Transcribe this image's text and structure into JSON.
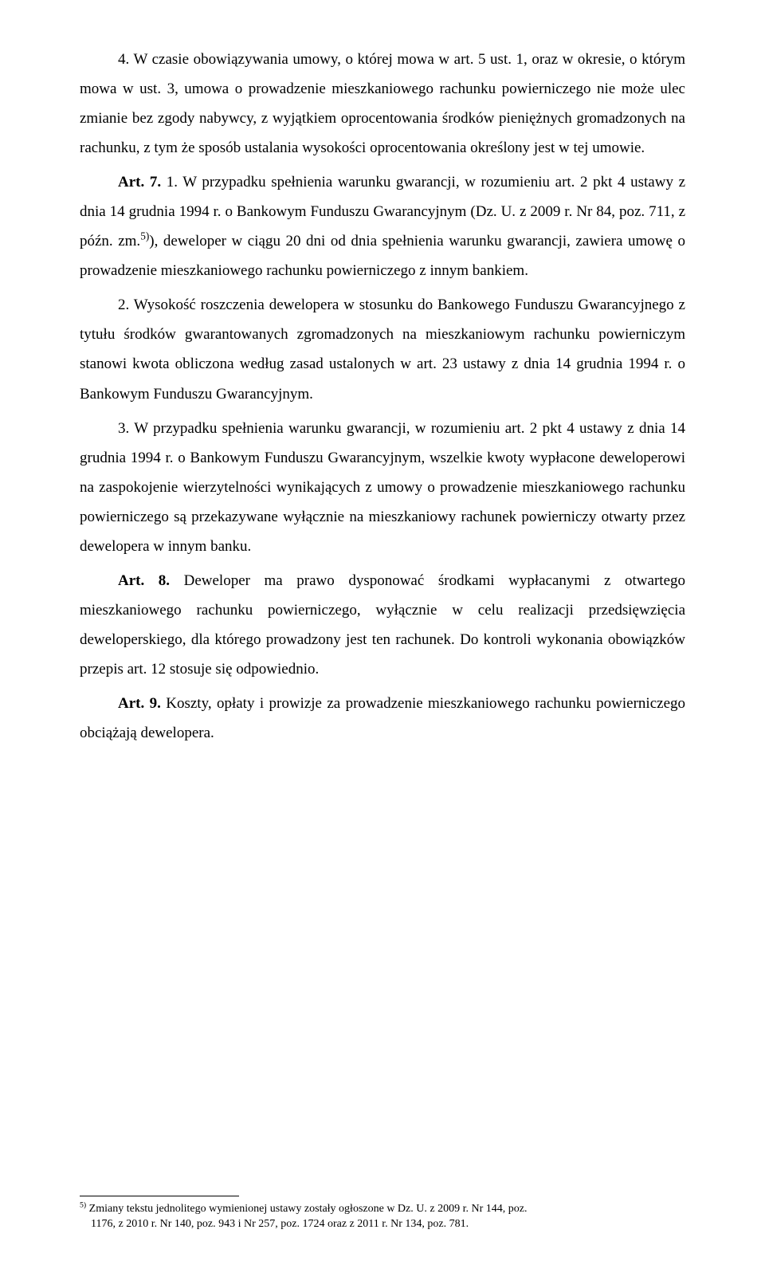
{
  "p1": "4. W czasie obowiązywania umowy, o której mowa w art. 5 ust. 1, oraz w okresie, o którym mowa w ust. 3, umowa o prowadzenie mieszkaniowego rachunku powierniczego nie może ulec zmianie bez zgody nabywcy, z wyjątkiem oprocentowania środków pieniężnych gromadzonych na rachunku, z tym że sposób ustalania wysokości oprocentowania określony jest w tej umowie.",
  "p2_a": "Art. 7.",
  "p2_b": " 1. W przypadku spełnienia warunku gwarancji, w rozumieniu art. 2 pkt 4 ustawy z dnia 14 grudnia 1994 r. o Bankowym Funduszu Gwarancyjnym (Dz. U. z 2009 r. Nr 84, poz. 711, z późn. zm.",
  "p2_sup": "5)",
  "p2_c": "), deweloper w ciągu 20 dni od dnia spełnienia warunku gwarancji, zawiera umowę o prowadzenie mieszkaniowego rachunku powierniczego z innym bankiem.",
  "p3": "2. Wysokość roszczenia dewelopera w stosunku do Bankowego Funduszu Gwarancyjnego z tytułu środków gwarantowanych zgromadzonych na mieszkaniowym rachunku powierniczym stanowi kwota obliczona według zasad ustalonych w art. 23 ustawy z dnia 14 grudnia 1994 r. o Bankowym Funduszu Gwarancyjnym.",
  "p4": "3. W przypadku spełnienia warunku gwarancji, w rozumieniu art. 2 pkt 4 ustawy z dnia 14 grudnia 1994 r. o Bankowym Funduszu Gwarancyjnym, wszelkie kwoty wypłacone deweloperowi na zaspokojenie wierzytelności wynikających z umowy o prowadzenie mieszkaniowego rachunku powierniczego są przekazywane wyłącznie na mieszkaniowy rachunek powierniczy otwarty przez dewelopera w innym banku.",
  "p5_a": "Art. 8.",
  "p5_b": " Deweloper ma prawo dysponować środkami wypłacanymi z otwartego mieszkaniowego rachunku powierniczego, wyłącznie w celu realizacji przedsięwzięcia deweloperskiego, dla którego prowadzony jest ten rachunek. Do kontroli wykonania obowiązków przepis art. 12 stosuje się odpowiednio.",
  "p6_a": "Art. 9.",
  "p6_b": " Koszty, opłaty i prowizje za prowadzenie mieszkaniowego rachunku powierniczego obciążają dewelopera.",
  "fn_sup": "5)",
  "fn_line1": " Zmiany tekstu jednolitego wymienionej ustawy zostały ogłoszone w Dz. U. z 2009 r. Nr 144, poz.",
  "fn_line2": "1176, z 2010 r. Nr 140, poz. 943 i Nr 257, poz. 1724 oraz z 2011 r. Nr 134, poz. 781."
}
